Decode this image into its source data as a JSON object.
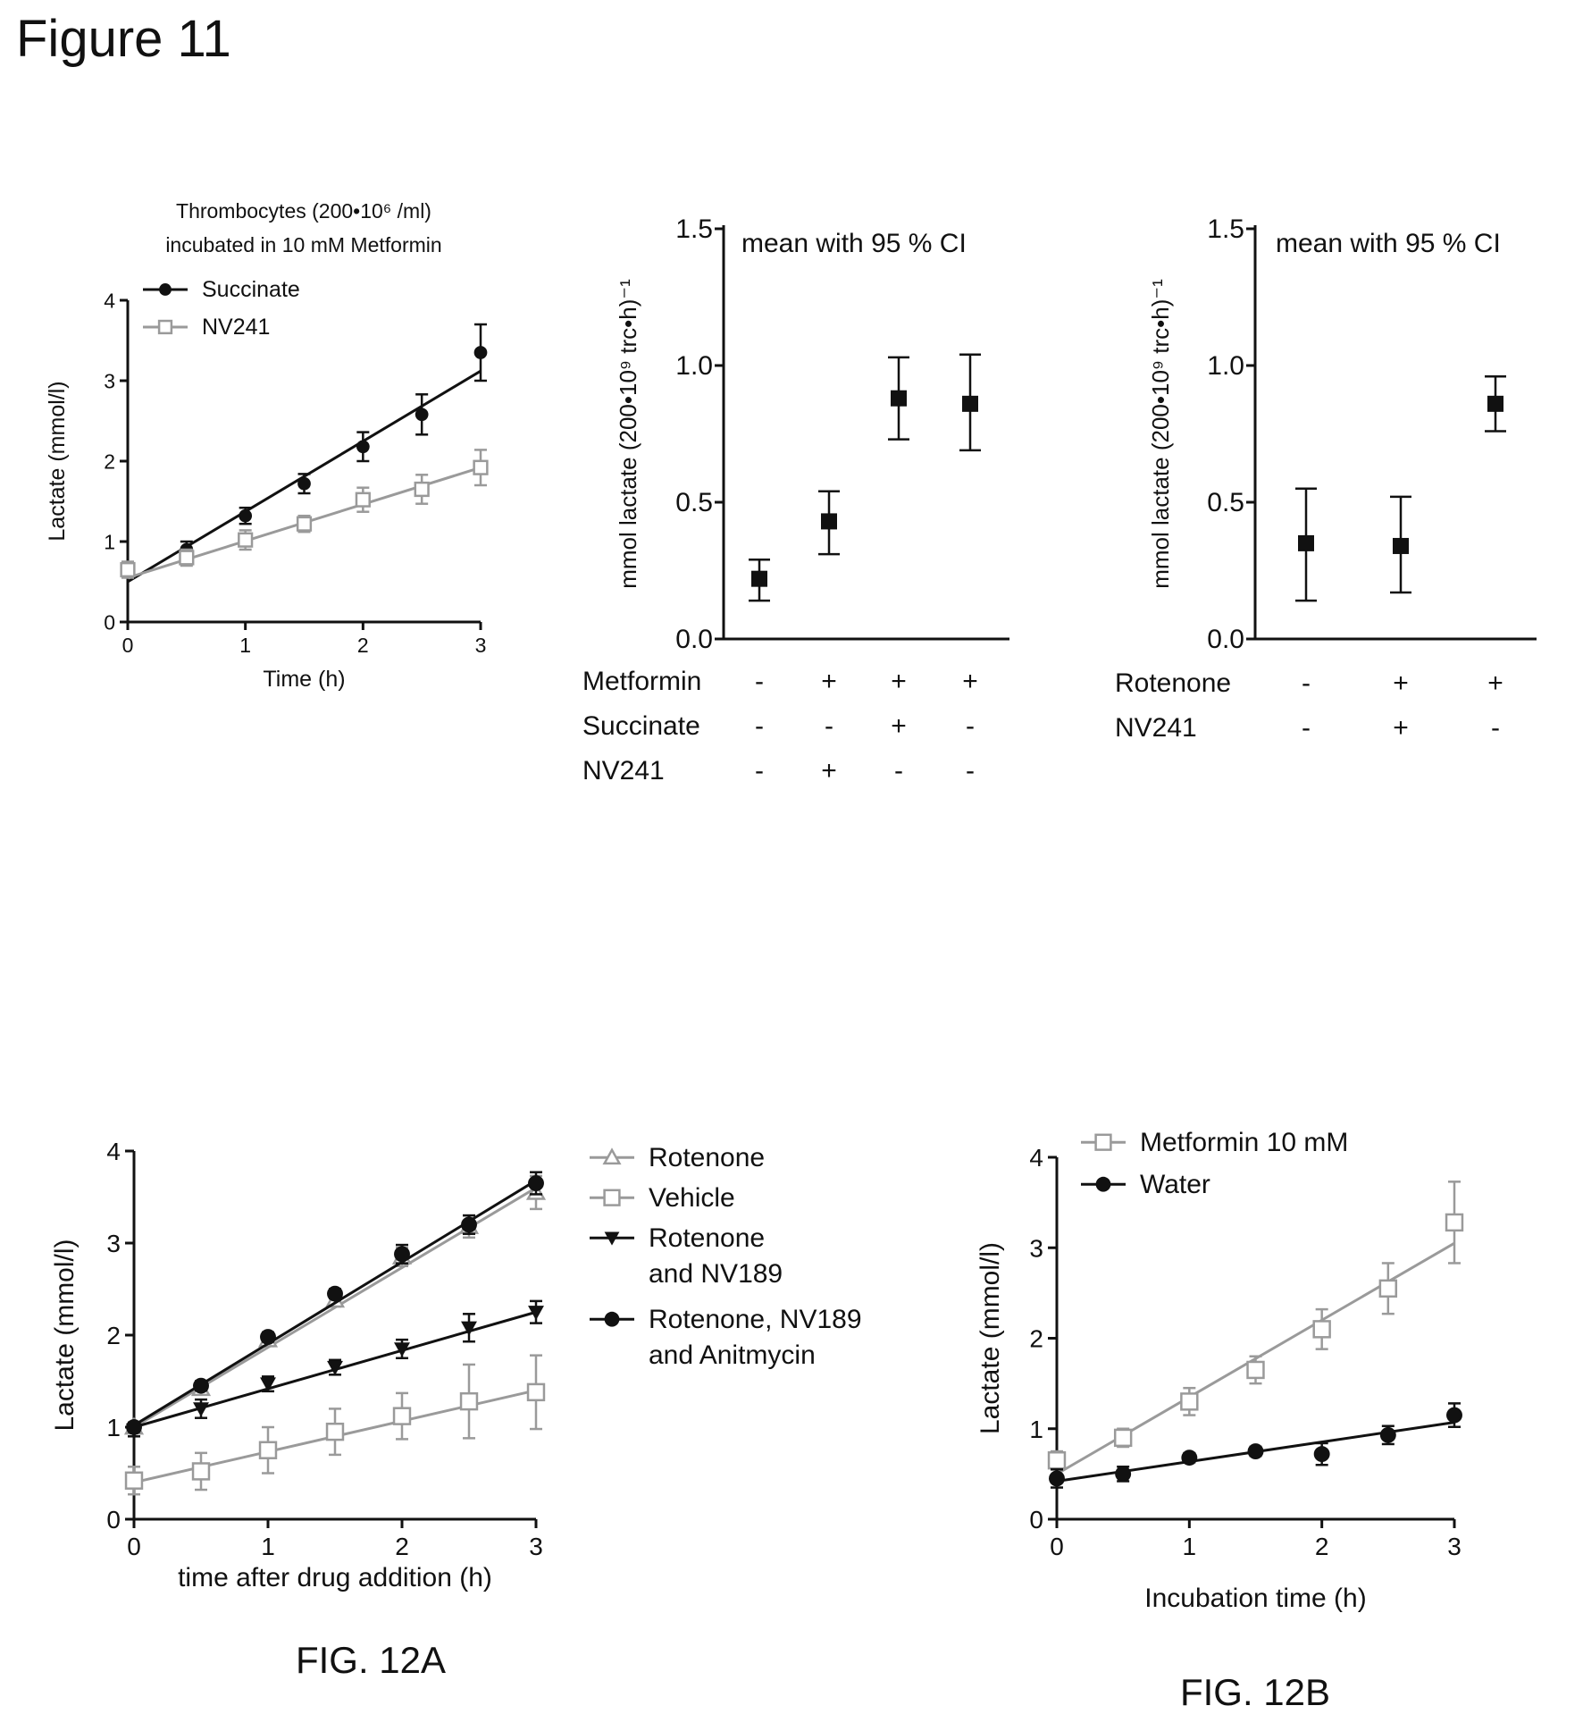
{
  "page": {
    "title": "Figure 11"
  },
  "chart_data": [
    {
      "id": "fig11a",
      "type": "line",
      "title": "Thrombocytes (200•10⁶ /ml)",
      "subtitle": "incubated in 10 mM Metformin",
      "xlabel": "Time (h)",
      "ylabel": "Lactate (mmol/l)",
      "xlim": [
        0,
        3
      ],
      "ylim": [
        0,
        4
      ],
      "xticks": [
        0,
        1,
        2,
        3
      ],
      "yticks": [
        0,
        1,
        2,
        3,
        4
      ],
      "legend": "top-left",
      "series": [
        {
          "name": "Succinate",
          "color": "#111111",
          "marker": "filled-circle",
          "x": [
            0,
            0.5,
            1,
            1.5,
            2,
            2.5,
            3
          ],
          "y": [
            0.62,
            0.9,
            1.32,
            1.72,
            2.18,
            2.58,
            3.35
          ],
          "err": [
            0.05,
            0.1,
            0.1,
            0.12,
            0.18,
            0.25,
            0.35
          ],
          "fit": [
            0.5,
            3.12
          ]
        },
        {
          "name": "NV241",
          "color": "#9a9a9a",
          "marker": "open-square",
          "x": [
            0,
            0.5,
            1,
            1.5,
            2,
            2.5,
            3
          ],
          "y": [
            0.65,
            0.8,
            1.02,
            1.22,
            1.52,
            1.65,
            1.92
          ],
          "err": [
            0.1,
            0.1,
            0.12,
            0.1,
            0.15,
            0.18,
            0.22
          ],
          "fit": [
            0.55,
            1.92
          ]
        }
      ]
    },
    {
      "id": "fig11b",
      "type": "scatter",
      "annotation": "mean with 95 % CI",
      "ylabel": "mmol lactate (200•10⁹ trc•h)⁻¹",
      "ylim": [
        0,
        1.5
      ],
      "ytick_labels": [
        "0.0",
        "0.5",
        "1.0",
        "1.5"
      ],
      "points": [
        {
          "mean": 0.22,
          "low": 0.14,
          "high": 0.29
        },
        {
          "mean": 0.43,
          "low": 0.31,
          "high": 0.54
        },
        {
          "mean": 0.88,
          "low": 0.73,
          "high": 1.03
        },
        {
          "mean": 0.86,
          "low": 0.69,
          "high": 1.04
        }
      ],
      "condition_table": [
        {
          "label": "Metformin",
          "values": [
            "-",
            "+",
            "+",
            "+"
          ]
        },
        {
          "label": "Succinate",
          "values": [
            "-",
            "-",
            "+",
            "-"
          ]
        },
        {
          "label": "NV241",
          "values": [
            "-",
            "+",
            "-",
            "-"
          ]
        }
      ]
    },
    {
      "id": "fig11c",
      "type": "scatter",
      "annotation": "mean with 95 % CI",
      "ylabel": "mmol lactate (200•10⁹ trc•h)⁻¹",
      "ylim": [
        0,
        1.5
      ],
      "ytick_labels": [
        "0.0",
        "0.5",
        "1.0",
        "1.5"
      ],
      "points": [
        {
          "mean": 0.35,
          "low": 0.14,
          "high": 0.55
        },
        {
          "mean": 0.34,
          "low": 0.17,
          "high": 0.52
        },
        {
          "mean": 0.86,
          "low": 0.76,
          "high": 0.96
        }
      ],
      "condition_table": [
        {
          "label": "Rotenone",
          "values": [
            "-",
            "+",
            "+"
          ]
        },
        {
          "label": "NV241",
          "values": [
            "-",
            "+",
            "-"
          ]
        }
      ]
    },
    {
      "id": "fig12a",
      "type": "line",
      "caption": "FIG. 12A",
      "xlabel": "time after drug addition (h)",
      "ylabel": "Lactate (mmol/l)",
      "xlim": [
        0,
        3
      ],
      "ylim": [
        0,
        4
      ],
      "xticks": [
        0,
        1,
        2,
        3
      ],
      "yticks": [
        0,
        1,
        2,
        3,
        4
      ],
      "legend": "right",
      "series": [
        {
          "name": "Rotenone",
          "color": "#9a9a9a",
          "marker": "open-triangle-up",
          "x": [
            0,
            0.5,
            1,
            1.5,
            2,
            2.5,
            3
          ],
          "y": [
            1.0,
            1.42,
            1.95,
            2.38,
            2.85,
            3.18,
            3.55
          ],
          "err": [
            0.05,
            0.05,
            0.07,
            0.07,
            0.1,
            0.12,
            0.18
          ],
          "fit": [
            1.0,
            3.6
          ]
        },
        {
          "name": "Vehicle",
          "color": "#9a9a9a",
          "marker": "open-square",
          "x": [
            0,
            0.5,
            1,
            1.5,
            2,
            2.5,
            3
          ],
          "y": [
            0.42,
            0.52,
            0.75,
            0.95,
            1.12,
            1.28,
            1.38
          ],
          "err": [
            0.15,
            0.2,
            0.25,
            0.25,
            0.25,
            0.4,
            0.4
          ],
          "fit": [
            0.4,
            1.4
          ]
        },
        {
          "name": "Rotenone\nand  NV189",
          "color": "#111111",
          "marker": "filled-triangle-down",
          "x": [
            0,
            0.5,
            1,
            1.5,
            2,
            2.5,
            3
          ],
          "y": [
            0.97,
            1.2,
            1.47,
            1.65,
            1.85,
            2.08,
            2.25
          ],
          "err": [
            0.07,
            0.1,
            0.08,
            0.08,
            0.1,
            0.15,
            0.12
          ],
          "fit": [
            1.0,
            2.25
          ]
        },
        {
          "name": "Rotenone, NV189\nand Anitmycin",
          "color": "#111111",
          "marker": "filled-circle",
          "x": [
            0,
            0.5,
            1,
            1.5,
            2,
            2.5,
            3
          ],
          "y": [
            1.0,
            1.45,
            1.98,
            2.45,
            2.88,
            3.2,
            3.65
          ],
          "err": [
            0.05,
            0.05,
            0.05,
            0.05,
            0.1,
            0.1,
            0.12
          ],
          "fit": [
            1.02,
            3.68
          ]
        }
      ]
    },
    {
      "id": "fig12b",
      "type": "line",
      "caption": "FIG. 12B",
      "xlabel": "Incubation time (h)",
      "ylabel": "Lactate (mmol/l)",
      "xlim": [
        0,
        3
      ],
      "ylim": [
        0,
        4
      ],
      "xticks": [
        0,
        1,
        2,
        3
      ],
      "yticks": [
        0,
        1,
        2,
        3,
        4
      ],
      "legend": "top-left",
      "series": [
        {
          "name": "Metformin 10 mM",
          "color": "#9a9a9a",
          "marker": "open-square",
          "x": [
            0,
            0.5,
            1,
            1.5,
            2,
            2.5,
            3
          ],
          "y": [
            0.65,
            0.9,
            1.3,
            1.65,
            2.1,
            2.55,
            3.28
          ],
          "err": [
            0.1,
            0.1,
            0.15,
            0.15,
            0.22,
            0.28,
            0.45
          ],
          "fit": [
            0.5,
            3.05
          ]
        },
        {
          "name": "Water",
          "color": "#111111",
          "marker": "filled-circle",
          "x": [
            0,
            0.5,
            1,
            1.5,
            2,
            2.5,
            3
          ],
          "y": [
            0.45,
            0.5,
            0.68,
            0.75,
            0.72,
            0.93,
            1.15
          ],
          "err": [
            0.1,
            0.08,
            0.05,
            0.05,
            0.12,
            0.1,
            0.13
          ],
          "fit": [
            0.42,
            1.07
          ]
        }
      ]
    }
  ]
}
